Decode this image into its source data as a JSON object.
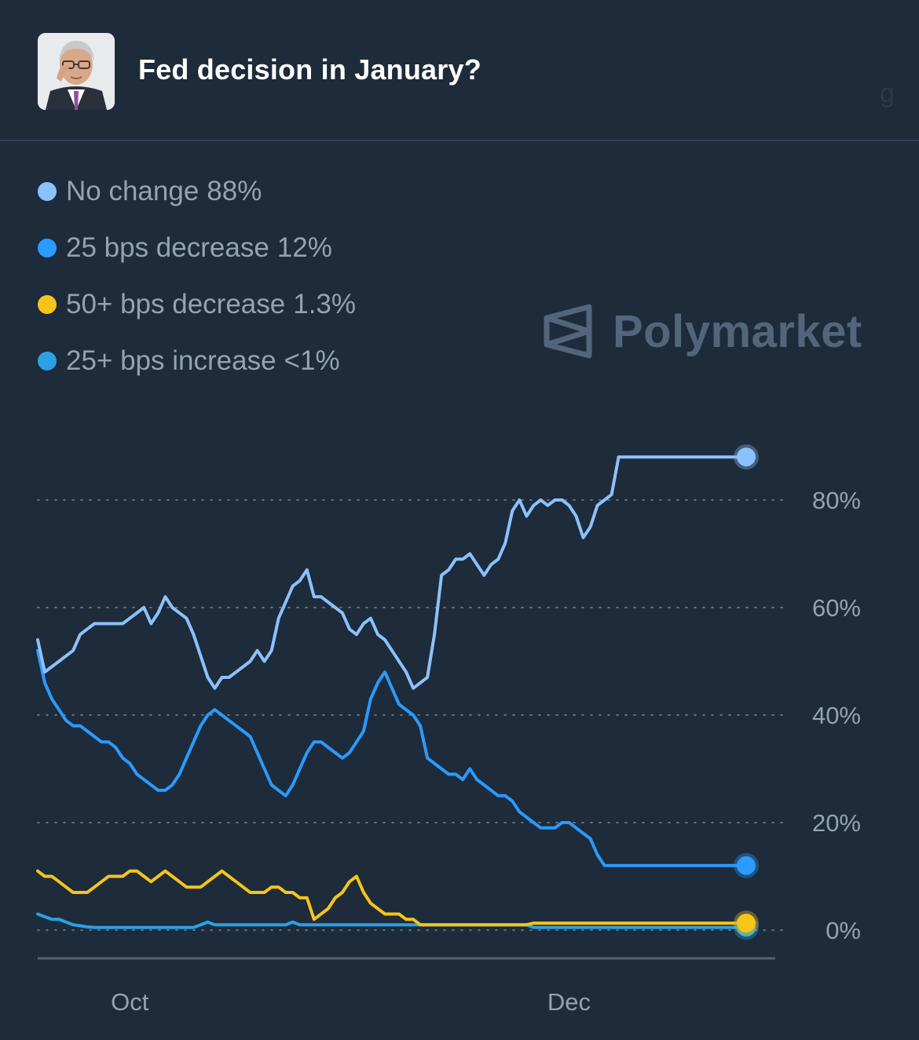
{
  "header": {
    "title": "Fed decision in January?",
    "ghost_char": "g"
  },
  "watermark": {
    "brand": "Polymarket"
  },
  "colors": {
    "background": "#1d2b3a",
    "no_change": "#8cc1ff",
    "decrease_25": "#2a9bff",
    "decrease_50": "#f5c518",
    "increase_25": "#2aa1e5"
  },
  "chart_data": {
    "type": "line",
    "title": "Fed decision in January?",
    "xlabel": "",
    "ylabel": "",
    "ylim": [
      0,
      90
    ],
    "x_range": [
      0,
      100
    ],
    "x_ticks": [
      {
        "x": 13,
        "label": "Oct"
      },
      {
        "x": 75,
        "label": "Dec"
      }
    ],
    "y_ticks": [
      0,
      20,
      40,
      60,
      80
    ],
    "y_tick_labels": [
      "0%",
      "20%",
      "40%",
      "60%",
      "80%"
    ],
    "grid": "horizontal-dotted",
    "legend_position": "top-left",
    "series": [
      {
        "name": "No change",
        "display_value": "88%",
        "color": "#8cc1ff",
        "x": [
          0,
          1,
          2,
          3,
          4,
          5,
          6,
          7,
          8,
          9,
          10,
          11,
          12,
          13,
          14,
          15,
          16,
          17,
          18,
          19,
          20,
          21,
          22,
          23,
          24,
          25,
          26,
          27,
          28,
          29,
          30,
          31,
          32,
          33,
          34,
          35,
          36,
          37,
          38,
          39,
          40,
          41,
          42,
          43,
          44,
          45,
          46,
          47,
          48,
          49,
          50,
          51,
          52,
          53,
          54,
          55,
          56,
          57,
          58,
          59,
          60,
          61,
          62,
          63,
          64,
          65,
          66,
          67,
          68,
          69,
          70,
          71,
          72,
          73,
          74,
          75,
          76,
          77,
          78,
          79,
          80,
          81,
          82,
          83,
          84,
          85,
          86,
          87,
          88,
          89,
          90,
          91,
          92,
          93,
          94,
          95,
          96,
          97,
          98,
          99,
          100
        ],
        "y": [
          54,
          48,
          49,
          50,
          51,
          52,
          55,
          56,
          57,
          57,
          57,
          57,
          57,
          58,
          59,
          60,
          57,
          59,
          62,
          60,
          59,
          58,
          55,
          51,
          47,
          45,
          47,
          47,
          48,
          49,
          50,
          52,
          50,
          52,
          58,
          61,
          64,
          65,
          67,
          62,
          62,
          61,
          60,
          59,
          56,
          55,
          57,
          58,
          55,
          54,
          52,
          50,
          48,
          45,
          46,
          47,
          55,
          66,
          67,
          69,
          69,
          70,
          68,
          66,
          68,
          69,
          72,
          78,
          80,
          77,
          79,
          80,
          79,
          80,
          80,
          79,
          77,
          73,
          75,
          79,
          80,
          81,
          88,
          88,
          88,
          88,
          88,
          88,
          88,
          88,
          88,
          88,
          88,
          88,
          88,
          88,
          88,
          88,
          88,
          88,
          88
        ],
        "end_marker": true
      },
      {
        "name": "25 bps decrease",
        "display_value": "12%",
        "color": "#2a9bff",
        "x": [
          0,
          1,
          2,
          3,
          4,
          5,
          6,
          7,
          8,
          9,
          10,
          11,
          12,
          13,
          14,
          15,
          16,
          17,
          18,
          19,
          20,
          21,
          22,
          23,
          24,
          25,
          26,
          27,
          28,
          29,
          30,
          31,
          32,
          33,
          34,
          35,
          36,
          37,
          38,
          39,
          40,
          41,
          42,
          43,
          44,
          45,
          46,
          47,
          48,
          49,
          50,
          51,
          52,
          53,
          54,
          55,
          56,
          57,
          58,
          59,
          60,
          61,
          62,
          63,
          64,
          65,
          66,
          67,
          68,
          69,
          70,
          71,
          72,
          73,
          74,
          75,
          76,
          77,
          78,
          79,
          80,
          81,
          82,
          83,
          84,
          85,
          86,
          87,
          88,
          89,
          90,
          91,
          92,
          93,
          94,
          95,
          96,
          97,
          98,
          99,
          100
        ],
        "y": [
          52,
          46,
          43,
          41,
          39,
          38,
          38,
          37,
          36,
          35,
          35,
          34,
          32,
          31,
          29,
          28,
          27,
          26,
          26,
          27,
          29,
          32,
          35,
          38,
          40,
          41,
          40,
          39,
          38,
          37,
          36,
          33,
          30,
          27,
          26,
          25,
          27,
          30,
          33,
          35,
          35,
          34,
          33,
          32,
          33,
          35,
          37,
          43,
          46,
          48,
          45,
          42,
          41,
          40,
          38,
          32,
          31,
          30,
          29,
          29,
          28,
          30,
          28,
          27,
          26,
          25,
          25,
          24,
          22,
          21,
          20,
          19,
          19,
          19,
          20,
          20,
          19,
          18,
          17,
          14,
          12,
          12,
          12,
          12,
          12,
          12,
          12,
          12,
          12,
          12,
          12,
          12,
          12,
          12,
          12,
          12,
          12,
          12,
          12,
          12,
          12
        ],
        "end_marker": true
      },
      {
        "name": "50+ bps decrease",
        "display_value": "1.3%",
        "color": "#f5c518",
        "x": [
          0,
          1,
          2,
          3,
          4,
          5,
          6,
          7,
          8,
          9,
          10,
          11,
          12,
          13,
          14,
          15,
          16,
          17,
          18,
          19,
          20,
          21,
          22,
          23,
          24,
          25,
          26,
          27,
          28,
          29,
          30,
          31,
          32,
          33,
          34,
          35,
          36,
          37,
          38,
          39,
          40,
          41,
          42,
          43,
          44,
          45,
          46,
          47,
          48,
          49,
          50,
          51,
          52,
          53,
          54,
          55,
          56,
          57,
          58,
          59,
          60,
          61,
          62,
          63,
          64,
          65,
          66,
          67,
          68,
          69,
          70,
          71,
          72,
          73,
          74,
          75,
          76,
          77,
          78,
          79,
          80,
          81,
          82,
          83,
          84,
          85,
          86,
          87,
          88,
          89,
          90,
          91,
          92,
          93,
          94,
          95,
          96,
          97,
          98,
          99,
          100
        ],
        "y": [
          11,
          10,
          10,
          9,
          8,
          7,
          7,
          7,
          8,
          9,
          10,
          10,
          10,
          11,
          11,
          10,
          9,
          10,
          11,
          10,
          9,
          8,
          8,
          8,
          9,
          10,
          11,
          10,
          9,
          8,
          7,
          7,
          7,
          8,
          8,
          7,
          7,
          6,
          6,
          2,
          3,
          4,
          6,
          7,
          9,
          10,
          7,
          5,
          4,
          3,
          3,
          3,
          2,
          2,
          1,
          1,
          1,
          1,
          1,
          1,
          1,
          1,
          1,
          1,
          1,
          1,
          1,
          1,
          1,
          1,
          1.3,
          1.3,
          1.3,
          1.3,
          1.3,
          1.3,
          1.3,
          1.3,
          1.3,
          1.3,
          1.3,
          1.3,
          1.3,
          1.3,
          1.3,
          1.3,
          1.3,
          1.3,
          1.3,
          1.3,
          1.3,
          1.3,
          1.3,
          1.3,
          1.3,
          1.3,
          1.3,
          1.3,
          1.3,
          1.3,
          1.3
        ],
        "end_marker": true
      },
      {
        "name": "25+ bps increase",
        "display_value": "<1%",
        "color": "#2aa1e5",
        "x": [
          0,
          1,
          2,
          3,
          4,
          5,
          6,
          7,
          8,
          9,
          10,
          11,
          12,
          13,
          14,
          15,
          16,
          17,
          18,
          19,
          20,
          21,
          22,
          23,
          24,
          25,
          26,
          27,
          28,
          29,
          30,
          31,
          32,
          33,
          34,
          35,
          36,
          37,
          38,
          39,
          40,
          41,
          42,
          43,
          44,
          45,
          46,
          47,
          48,
          49,
          50,
          51,
          52,
          53,
          54,
          55,
          56,
          57,
          58,
          59,
          60,
          61,
          62,
          63,
          64,
          65,
          66,
          67,
          68,
          69,
          70,
          71,
          72,
          73,
          74,
          75,
          76,
          77,
          78,
          79,
          80,
          81,
          82,
          83,
          84,
          85,
          86,
          87,
          88,
          89,
          90,
          91,
          92,
          93,
          94,
          95,
          96,
          97,
          98,
          99,
          100
        ],
        "y": [
          3,
          2.5,
          2,
          2,
          1.5,
          1,
          0.8,
          0.6,
          0.5,
          0.5,
          0.5,
          0.5,
          0.5,
          0.5,
          0.5,
          0.5,
          0.5,
          0.5,
          0.5,
          0.5,
          0.5,
          0.5,
          0.5,
          1,
          1.5,
          1,
          1,
          1,
          1,
          1,
          1,
          1,
          1,
          1,
          1,
          1,
          1.5,
          1,
          1,
          1,
          1,
          1,
          1,
          1,
          1,
          1,
          1,
          1,
          1,
          1,
          1,
          1,
          1,
          1,
          1,
          1,
          1,
          1,
          1,
          1,
          1,
          1,
          1,
          1,
          1,
          1,
          1,
          1,
          1,
          1,
          0.5,
          0.5,
          0.5,
          0.5,
          0.5,
          0.5,
          0.5,
          0.5,
          0.5,
          0.5,
          0.5,
          0.5,
          0.5,
          0.5,
          0.5,
          0.5,
          0.5,
          0.5,
          0.5,
          0.5,
          0.5,
          0.5,
          0.5,
          0.5,
          0.5,
          0.5,
          0.5,
          0.5,
          0.5,
          0.5,
          0.5
        ],
        "end_marker": true
      }
    ]
  }
}
